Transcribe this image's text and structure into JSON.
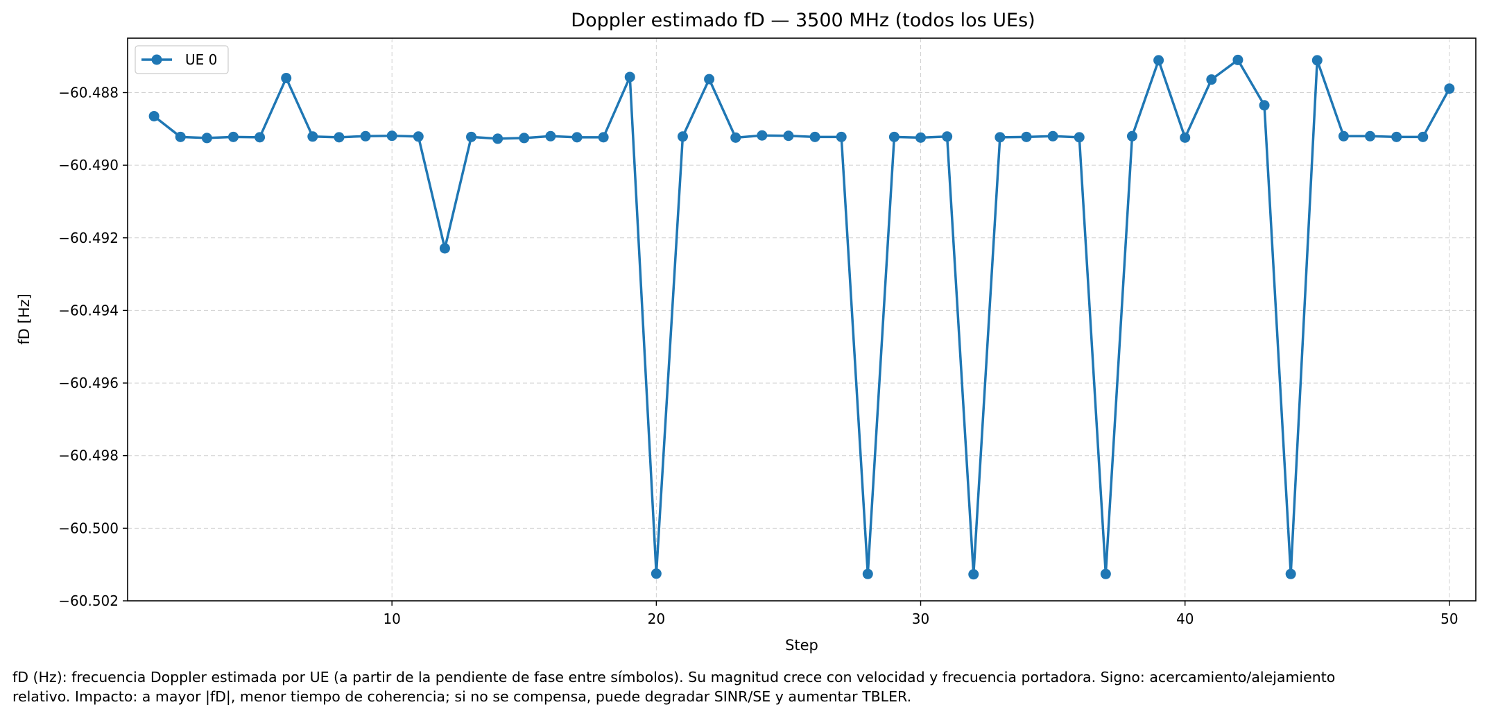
{
  "chart_data": {
    "type": "line",
    "title": "Doppler estimado fD — 3500 MHz (todos los UEs)",
    "xlabel": "Step",
    "ylabel": "fD [Hz]",
    "xlim": [
      0.0,
      51.0
    ],
    "ylim": [
      -60.502,
      -60.4865
    ],
    "xticks": [
      10,
      20,
      30,
      40,
      50
    ],
    "yticks": [
      -60.502,
      -60.5,
      -60.498,
      -60.496,
      -60.494,
      -60.492,
      -60.49,
      -60.488
    ],
    "ytick_labels": [
      "−60.502",
      "−60.500",
      "−60.498",
      "−60.496",
      "−60.494",
      "−60.492",
      "−60.490",
      "−60.488"
    ],
    "grid": true,
    "legend_position": "top-left",
    "color": "#1f77b4",
    "series": [
      {
        "name": "UE 0",
        "x": [
          1,
          2,
          3,
          4,
          5,
          6,
          7,
          8,
          9,
          10,
          11,
          12,
          13,
          14,
          15,
          16,
          17,
          18,
          19,
          20,
          21,
          22,
          23,
          24,
          25,
          26,
          27,
          28,
          29,
          30,
          31,
          32,
          33,
          34,
          35,
          36,
          37,
          38,
          39,
          40,
          41,
          42,
          43,
          44,
          45,
          46,
          47,
          48,
          49,
          50
        ],
        "y": [
          -60.48865,
          -60.48922,
          -60.48925,
          -60.48922,
          -60.48923,
          -60.4876,
          -60.48921,
          -60.48923,
          -60.4892,
          -60.48919,
          -60.48921,
          -60.49229,
          -60.48922,
          -60.48927,
          -60.48925,
          -60.4892,
          -60.48923,
          -60.48923,
          -60.48757,
          -60.50125,
          -60.48921,
          -60.48763,
          -60.48924,
          -60.48918,
          -60.48919,
          -60.48922,
          -60.48922,
          -60.50126,
          -60.48922,
          -60.48924,
          -60.48921,
          -60.50127,
          -60.48923,
          -60.48922,
          -60.4892,
          -60.48923,
          -60.50126,
          -60.4892,
          -60.48711,
          -60.48924,
          -60.48764,
          -60.4871,
          -60.48835,
          -60.50126,
          -60.48711,
          -60.4892,
          -60.4892,
          -60.48922,
          -60.48922,
          -60.48789
        ]
      }
    ]
  },
  "caption": {
    "line1": "fD (Hz): frecuencia Doppler estimada por UE (a partir de la pendiente de fase entre símbolos). Su magnitud crece con velocidad y frecuencia portadora. Signo: acercamiento/alejamiento",
    "line2": "relativo. Impacto: a mayor |fD|, menor tiempo de coherencia; si no se compensa, puede degradar SINR/SE y aumentar TBLER."
  }
}
